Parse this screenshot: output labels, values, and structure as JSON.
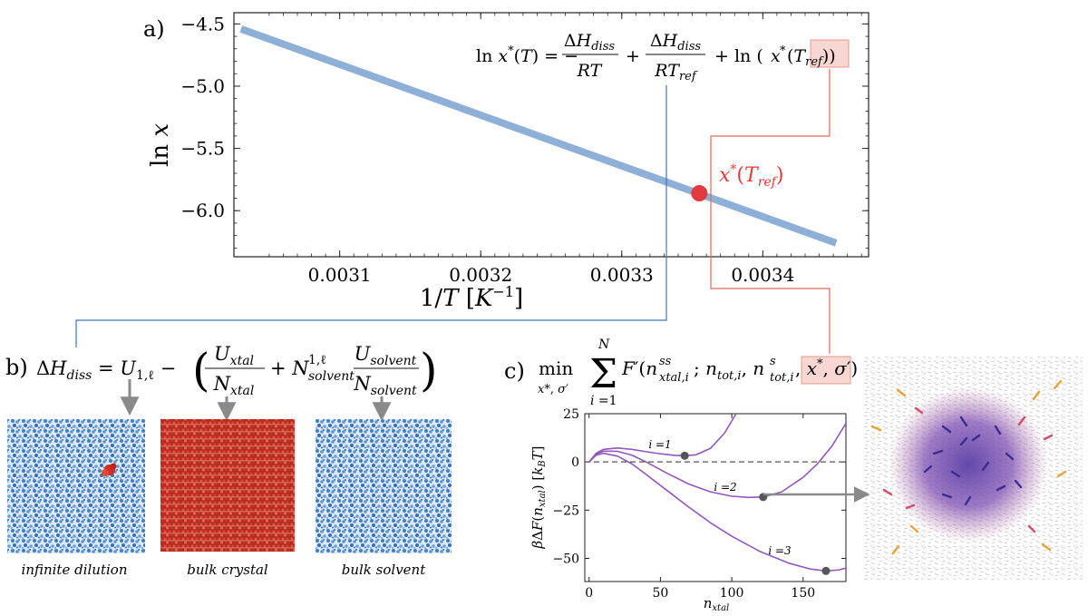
{
  "panel_a": {
    "label": "a)",
    "equation": "ln x*(T) = − ΔH_diss / RT + ΔH_diss / RT_ref + ln (x*(T_ref))",
    "point_label": "x*(T_ref)",
    "chart_data": {
      "type": "line",
      "title": "",
      "xlabel": "1/T [K⁻¹]",
      "ylabel": "ln x",
      "xlim": [
        0.003025,
        0.003475
      ],
      "ylim": [
        -6.37,
        -4.41
      ],
      "x_ticks": [
        0.0031,
        0.0032,
        0.0033,
        0.0034
      ],
      "x_tick_labels": [
        "0.0031",
        "0.0032",
        "0.0033",
        "0.0034"
      ],
      "y_ticks": [
        -4.5,
        -5.0,
        -5.5,
        -6.0
      ],
      "y_tick_labels": [
        "−4.5",
        "−5.0",
        "−5.5",
        "−6.0"
      ],
      "series": [
        {
          "name": "ln x*(T)",
          "x": [
            0.00303,
            0.003452
          ],
          "y": [
            -4.54,
            -6.26
          ],
          "color": "#8fb0d6"
        }
      ],
      "highlight_point": {
        "x": 0.003355,
        "y": -5.86,
        "color": "#e23b3b"
      }
    }
  },
  "panel_b": {
    "label": "b)",
    "equation": "ΔH_diss = U_1,ℓ − ( U_xtal / N_xtal + N_solvent^1,ℓ U_solvent / N_solvent )",
    "images": [
      {
        "caption": "infinite dilution",
        "kind": "dilution"
      },
      {
        "caption": "bulk crystal",
        "kind": "crystal"
      },
      {
        "caption": "bulk solvent",
        "kind": "solvent"
      }
    ]
  },
  "panel_c": {
    "label": "c)",
    "equation": "min over x*, σ′ of Σ (i=1 to N) F′(n_xtal,i^ss ; n_tot,i , n_tot,i^s , x*, σ′)",
    "chart_data": {
      "type": "line",
      "xlabel": "n_xtal",
      "ylabel": "βΔF(n_xtal) [k_B T]",
      "xlim": [
        -3,
        180
      ],
      "ylim": [
        -62,
        25
      ],
      "x_ticks": [
        0,
        50,
        100,
        150
      ],
      "x_tick_labels": [
        "0",
        "50",
        "100",
        "150"
      ],
      "y_ticks": [
        25,
        0,
        -25,
        -50
      ],
      "y_tick_labels": [
        "25",
        "0",
        "−25",
        "−50"
      ],
      "series": [
        {
          "name": "i =1",
          "x": [
            0,
            5,
            10,
            20,
            30,
            40,
            50,
            60,
            67,
            75,
            85,
            95,
            103
          ],
          "y": [
            0,
            4.5,
            6.5,
            7.2,
            6.5,
            5.3,
            4.2,
            3.4,
            3.2,
            3.7,
            7,
            15,
            25
          ]
        },
        {
          "name": "i =2",
          "x": [
            0,
            5,
            10,
            20,
            30,
            40,
            55,
            70,
            85,
            100,
            112,
            122,
            135,
            150,
            160,
            170,
            180
          ],
          "y": [
            0,
            4,
            5.6,
            5.5,
            3.5,
            0,
            -6,
            -11.5,
            -15.5,
            -17.8,
            -18.4,
            -18.2,
            -15.5,
            -8,
            -1,
            8,
            20
          ]
        },
        {
          "name": "i =3",
          "x": [
            0,
            5,
            10,
            20,
            30,
            40,
            55,
            70,
            85,
            100,
            120,
            140,
            155,
            166,
            175,
            180
          ],
          "y": [
            0,
            3.5,
            4.5,
            3,
            -1,
            -6.5,
            -15,
            -23.5,
            -31.5,
            -38.5,
            -46.5,
            -52.5,
            -55.5,
            -56.5,
            -56,
            -55
          ]
        }
      ],
      "markers": [
        {
          "series": "i =1",
          "x": 67,
          "y": 3.2
        },
        {
          "series": "i =2",
          "x": 122,
          "y": -18.2
        },
        {
          "series": "i =3",
          "x": 166,
          "y": -56.5
        }
      ],
      "reference_line": {
        "y": 0,
        "style": "dashed"
      }
    }
  },
  "colors": {
    "blue_line": "#8fb0d6",
    "red_point": "#e23b3b",
    "blue_connector": "#3b78c0",
    "red_connector": "#e06a5a",
    "highlight_box": "#f8d6d2",
    "purple_curve": "#9158b8",
    "gray_arrow": "#8a8a8a"
  }
}
